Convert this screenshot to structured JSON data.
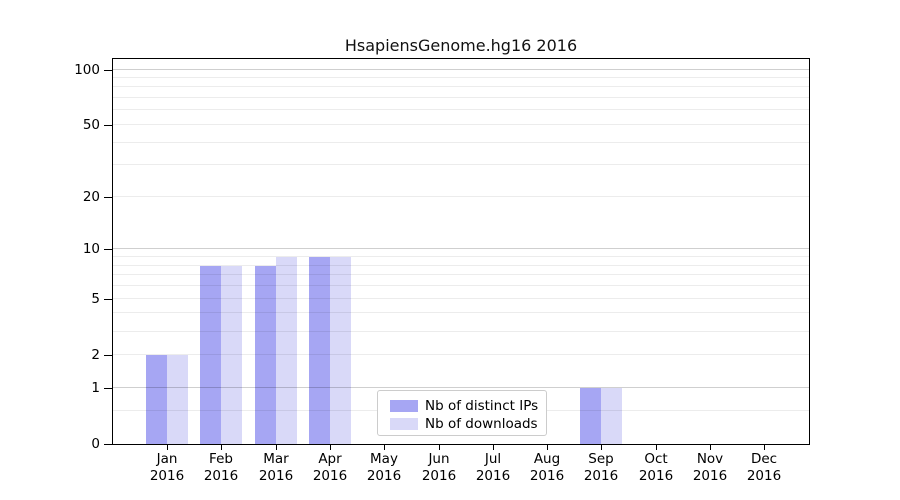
{
  "chart_data": {
    "type": "bar",
    "title": "HsapiensGenome.hg16 2016",
    "categories": [
      "Jan",
      "Feb",
      "Mar",
      "Apr",
      "May",
      "Jun",
      "Jul",
      "Aug",
      "Sep",
      "Oct",
      "Nov",
      "Dec"
    ],
    "category_year": "2016",
    "series": [
      {
        "name": "Nb of distinct IPs",
        "color": "#a6a6f3",
        "values": [
          2,
          8,
          8,
          9,
          0,
          0,
          0,
          0,
          1,
          0,
          0,
          0
        ]
      },
      {
        "name": "Nb of downloads",
        "color": "#d9d9f8",
        "values": [
          2,
          8,
          9,
          9,
          0,
          0,
          0,
          0,
          1,
          0,
          0,
          0
        ]
      }
    ],
    "y_axis": {
      "scale": "log1p",
      "tick_values": [
        100,
        50,
        20,
        10,
        5,
        2,
        1,
        0
      ],
      "ylim": [
        0,
        114
      ],
      "minor_gridlines": [
        0.5,
        2,
        3,
        4,
        5,
        6,
        7,
        8,
        9,
        20,
        30,
        40,
        50,
        60,
        70,
        80,
        90
      ],
      "major_gridlines": [
        1,
        10,
        100
      ]
    },
    "legend": {
      "position": "inside-bottom-center",
      "entries": [
        "Nb of distinct IPs",
        "Nb of downloads"
      ]
    },
    "grid": true
  }
}
